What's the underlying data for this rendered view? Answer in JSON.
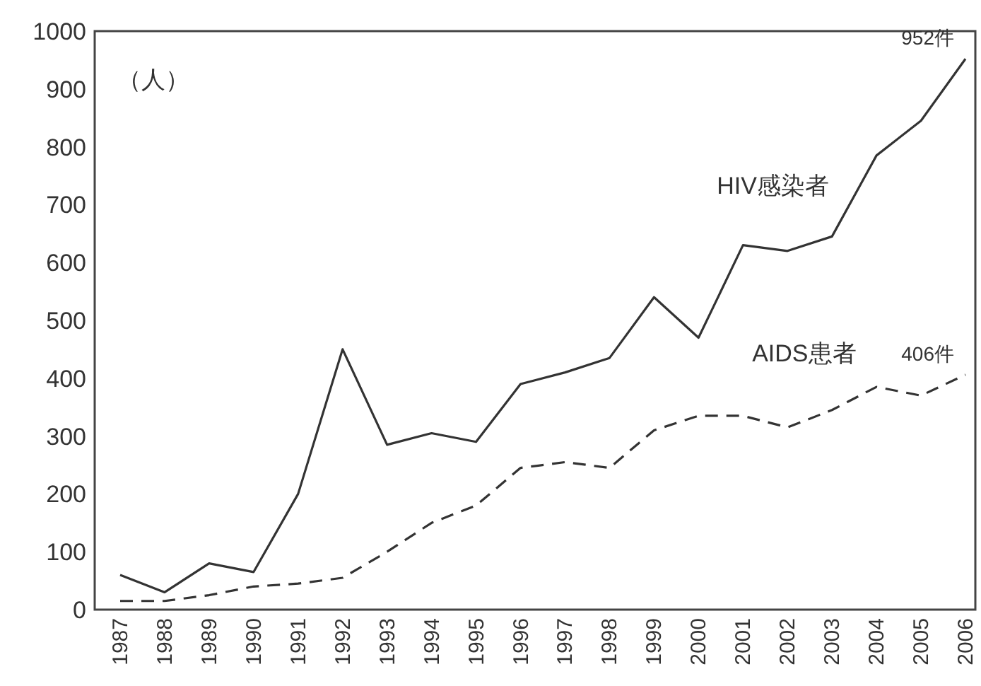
{
  "chart_data": {
    "type": "line",
    "ylabel": "（人）",
    "categories": [
      "1987",
      "1988",
      "1989",
      "1990",
      "1991",
      "1992",
      "1993",
      "1994",
      "1995",
      "1996",
      "1997",
      "1998",
      "1999",
      "2000",
      "2001",
      "2002",
      "2003",
      "2004",
      "2005",
      "2006"
    ],
    "series": [
      {
        "name": "HIV感染者",
        "color": "#333333",
        "line_style": "solid",
        "values": [
          60,
          30,
          80,
          65,
          200,
          450,
          285,
          305,
          290,
          390,
          410,
          435,
          540,
          470,
          630,
          620,
          645,
          785,
          845,
          952
        ],
        "value_labels": [
          null,
          null,
          null,
          null,
          null,
          null,
          null,
          null,
          null,
          null,
          null,
          null,
          null,
          null,
          null,
          null,
          null,
          null,
          null,
          "952件"
        ]
      },
      {
        "name": "AIDS患者",
        "color": "#333333",
        "line_style": "dashed",
        "values": [
          15,
          15,
          25,
          40,
          45,
          55,
          100,
          150,
          180,
          245,
          255,
          245,
          310,
          335,
          335,
          315,
          345,
          385,
          370,
          406
        ],
        "value_labels": [
          null,
          null,
          null,
          null,
          null,
          null,
          null,
          null,
          null,
          null,
          null,
          null,
          null,
          null,
          null,
          null,
          null,
          null,
          null,
          "406件"
        ]
      }
    ],
    "ylim": [
      0,
      1000
    ],
    "yticks": [
      0,
      100,
      200,
      300,
      400,
      500,
      600,
      700,
      800,
      900,
      1000
    ],
    "grid": false,
    "legend": false,
    "marker": "none"
  }
}
